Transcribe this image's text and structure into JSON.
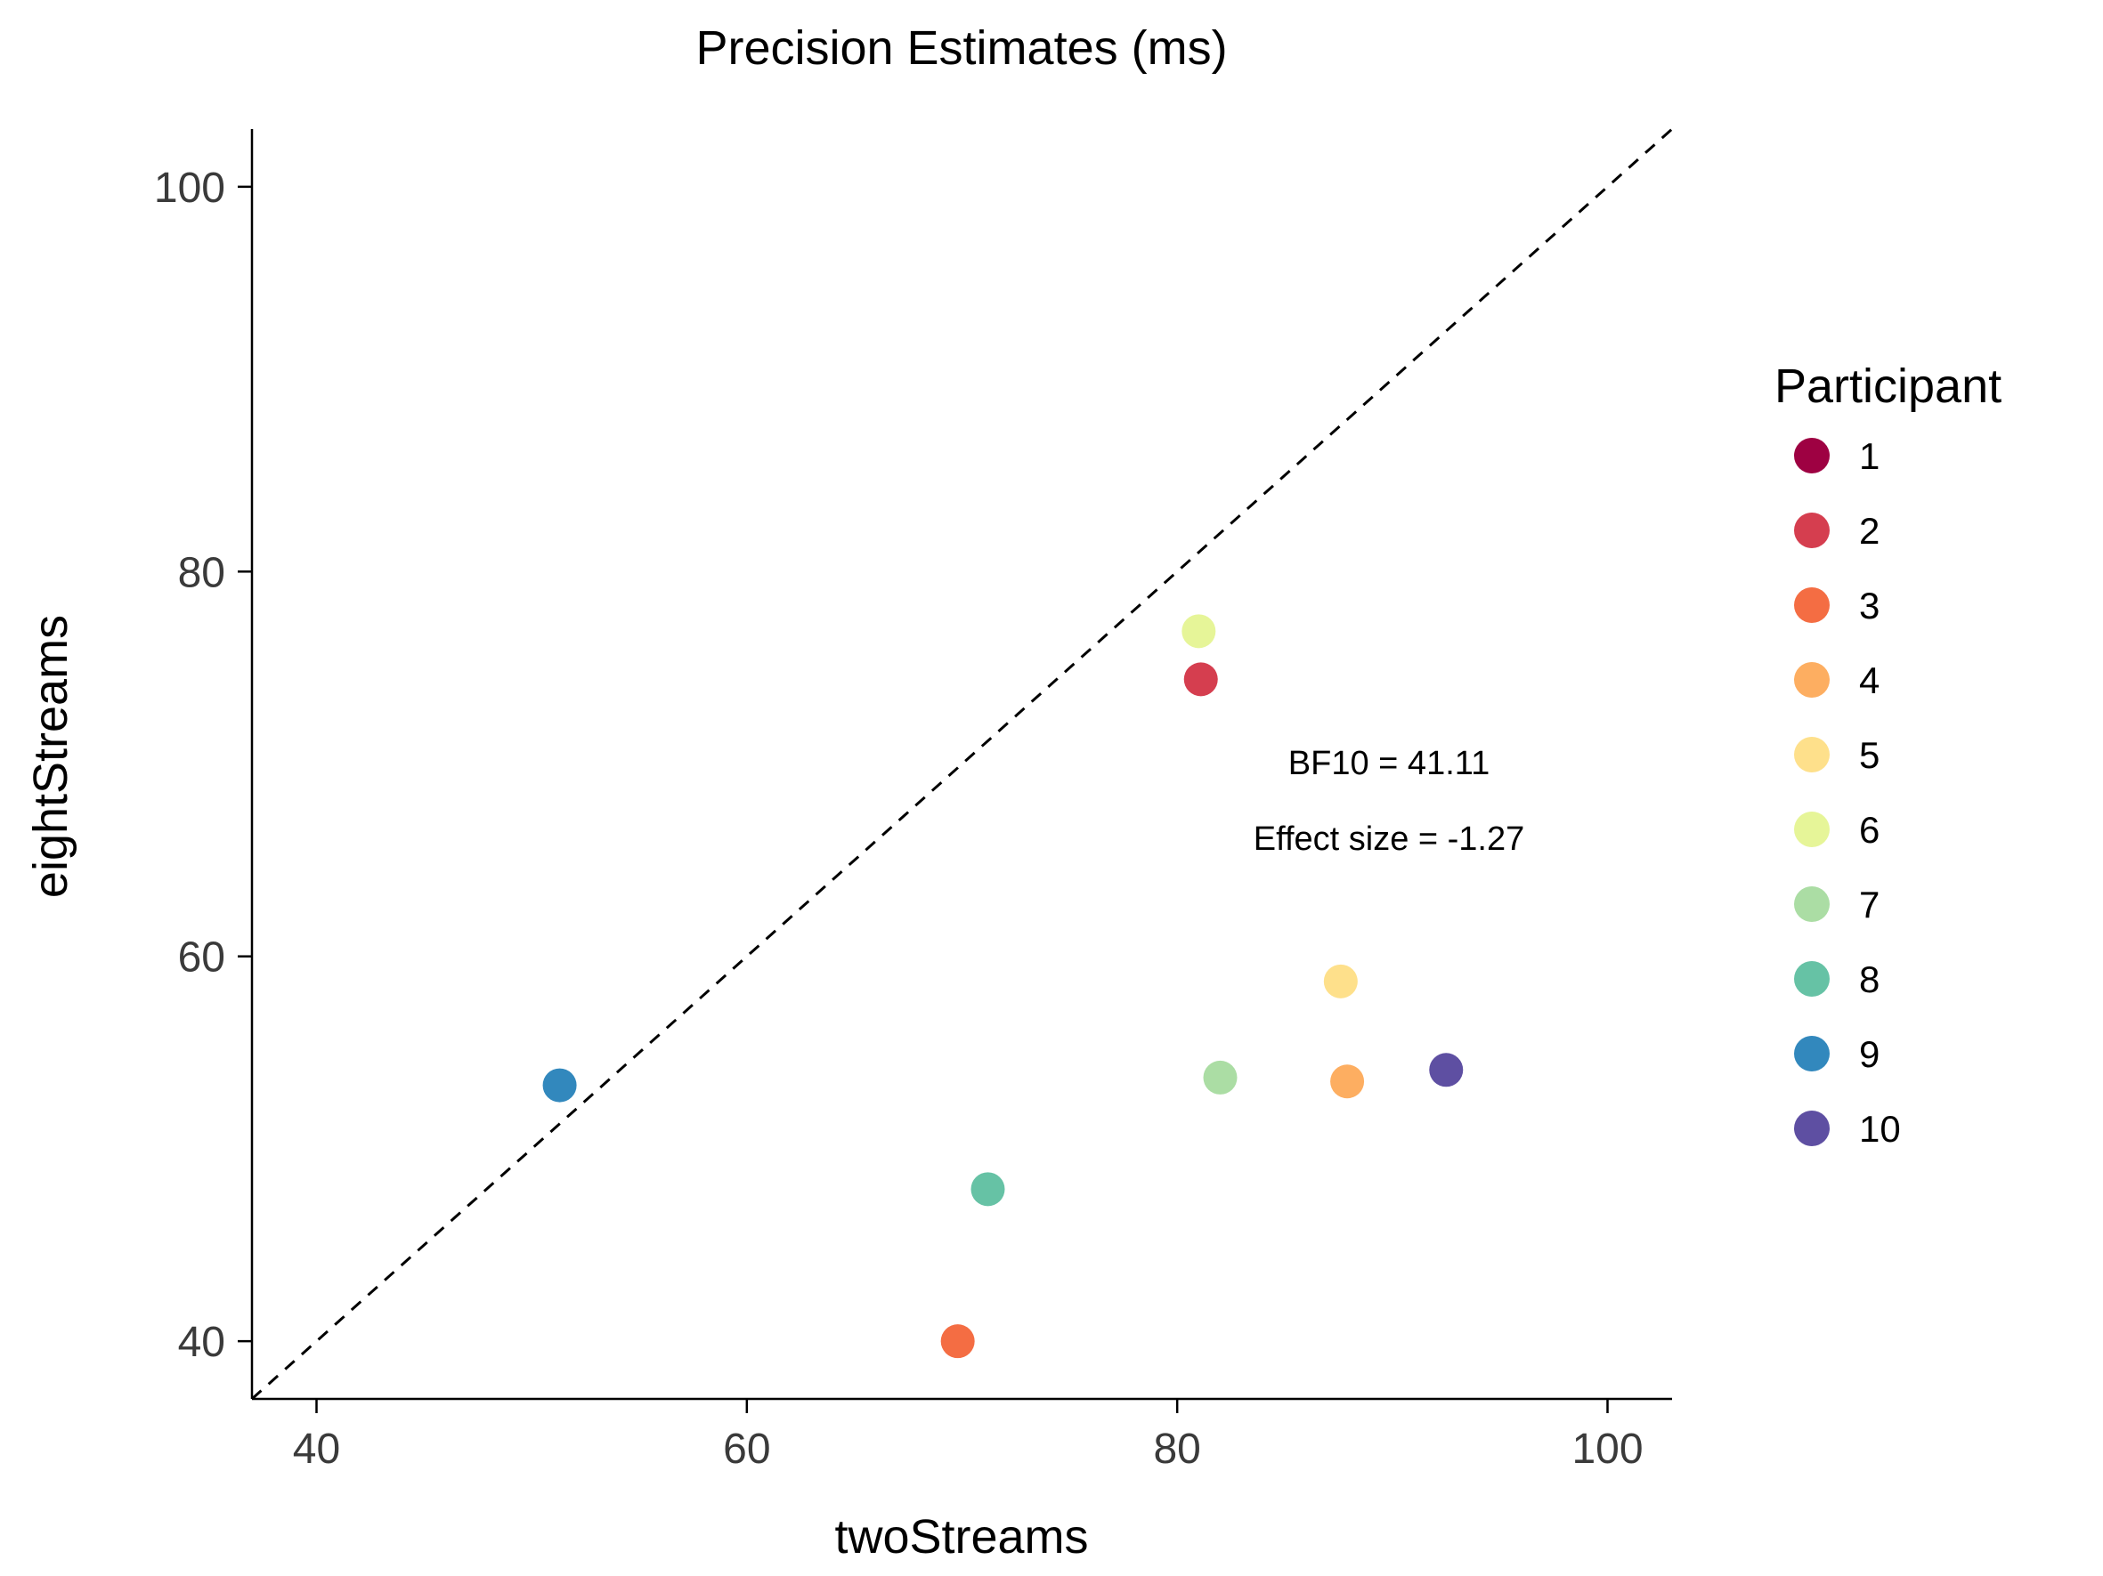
{
  "chart_data": {
    "type": "scatter",
    "title": "Precision Estimates (ms)",
    "xlabel": "twoStreams",
    "ylabel": "eightStreams",
    "xlim": [
      37,
      103
    ],
    "ylim": [
      37,
      103
    ],
    "xticks": [
      40,
      60,
      80,
      100
    ],
    "yticks": [
      40,
      60,
      80,
      100
    ],
    "reference_line": "dashed y = x",
    "grid": false,
    "annotations": [
      "BF10 = 41.11",
      "Effect size = -1.27"
    ],
    "legend": {
      "title": "Participant",
      "placement": "right",
      "entries": [
        {
          "label": "1",
          "color": "#9e0142"
        },
        {
          "label": "2",
          "color": "#d53e4f"
        },
        {
          "label": "3",
          "color": "#f46d43"
        },
        {
          "label": "4",
          "color": "#fdae61"
        },
        {
          "label": "5",
          "color": "#fee08b"
        },
        {
          "label": "6",
          "color": "#e6f598"
        },
        {
          "label": "7",
          "color": "#abdda4"
        },
        {
          "label": "8",
          "color": "#66c2a5"
        },
        {
          "label": "9",
          "color": "#3288bd"
        },
        {
          "label": "10",
          "color": "#5e4fa2"
        }
      ]
    },
    "points": [
      {
        "participant": "2",
        "x": 81.1,
        "y": 74.4,
        "color": "#d53e4f"
      },
      {
        "participant": "3",
        "x": 69.8,
        "y": 40.0,
        "color": "#f46d43"
      },
      {
        "participant": "4",
        "x": 87.9,
        "y": 53.5,
        "color": "#fdae61"
      },
      {
        "participant": "5",
        "x": 87.6,
        "y": 58.7,
        "color": "#fee08b"
      },
      {
        "participant": "6",
        "x": 81.0,
        "y": 76.9,
        "color": "#e6f598"
      },
      {
        "participant": "7",
        "x": 82.0,
        "y": 53.7,
        "color": "#abdda4"
      },
      {
        "participant": "8",
        "x": 71.2,
        "y": 47.9,
        "color": "#66c2a5"
      },
      {
        "participant": "9",
        "x": 51.3,
        "y": 53.3,
        "color": "#3288bd"
      },
      {
        "participant": "10",
        "x": 92.5,
        "y": 54.1,
        "color": "#5e4fa2"
      }
    ]
  }
}
